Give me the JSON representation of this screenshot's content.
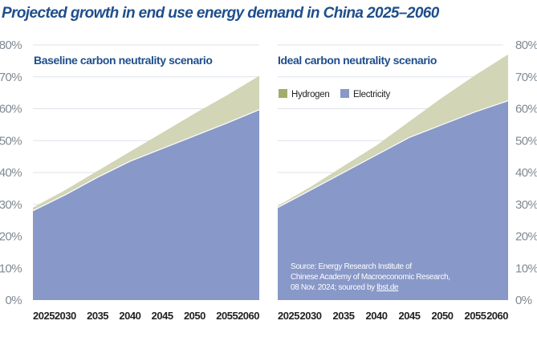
{
  "title": "Projected growth in end use energy demand in China 2025–2060",
  "colors": {
    "title": "#1f4e8c",
    "hydrogen_fill": "#d2d5b6",
    "hydrogen_legend": "#a3ab6d",
    "electricity_fill": "#8898c8",
    "grid": "#dde3ea",
    "ytick": "#7f8a93",
    "xtick": "#222222"
  },
  "legend": [
    {
      "name": "Hydrogen",
      "color": "#a3ab6d"
    },
    {
      "name": "Electricity",
      "color": "#8898c8"
    }
  ],
  "source": {
    "line1": "Source: Energy Research Institute of",
    "line2": "Chinese Academy of Macroeconomic Research,",
    "line3_prefix": "08 Nov. 2024; sourced by ",
    "link": "lbst.de"
  },
  "chart_data": [
    {
      "type": "area",
      "stacked": true,
      "title": "Baseline carbon neutrality scenario",
      "x": [
        2025,
        2030,
        2035,
        2040,
        2045,
        2050,
        2055,
        2060
      ],
      "categories": [
        "2025",
        "2030",
        "2035",
        "2040",
        "2045",
        "2050",
        "2055",
        "2060"
      ],
      "ylim": [
        0,
        80
      ],
      "yticks": [
        "0%",
        "10%",
        "20%",
        "30%",
        "40%",
        "50%",
        "60%",
        "70%",
        "80%"
      ],
      "y_axis_side": "left",
      "grid": true,
      "series": [
        {
          "name": "Electricity",
          "values": [
            28,
            33,
            38.5,
            43.5,
            47.5,
            51.5,
            55.5,
            59.7
          ]
        },
        {
          "name": "Hydrogen",
          "values": [
            1,
            1.5,
            2,
            3,
            5,
            7,
            8.7,
            10.6
          ]
        }
      ]
    },
    {
      "type": "area",
      "stacked": true,
      "title": "Ideal carbon neutrality scenario",
      "x": [
        2025,
        2030,
        2035,
        2040,
        2045,
        2050,
        2055,
        2060
      ],
      "categories": [
        "2025",
        "2030",
        "2035",
        "2040",
        "2045",
        "2050",
        "2055",
        "2060"
      ],
      "ylim": [
        0,
        80
      ],
      "yticks": [
        "0%",
        "10%",
        "20%",
        "30%",
        "40%",
        "50%",
        "60%",
        "70%",
        "80%"
      ],
      "y_axis_side": "right",
      "grid": true,
      "legend_position": "top-left",
      "series": [
        {
          "name": "Electricity",
          "values": [
            29,
            34.5,
            40,
            45.5,
            51,
            55,
            59,
            62.5
          ]
        },
        {
          "name": "Hydrogen",
          "values": [
            0.5,
            1,
            2,
            3,
            5,
            8.5,
            11.5,
            14.5
          ]
        }
      ]
    }
  ]
}
